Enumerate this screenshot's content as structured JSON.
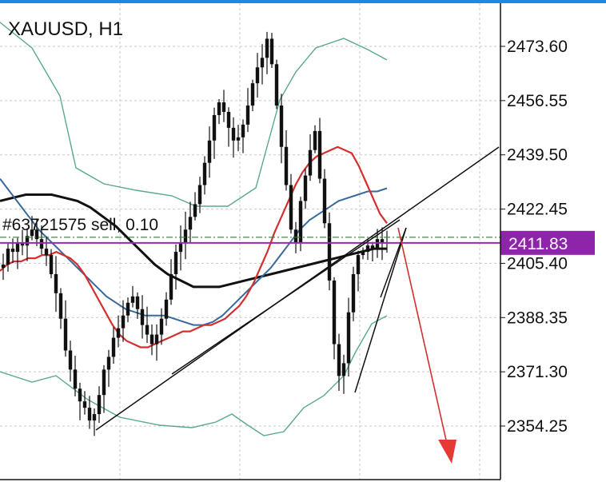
{
  "chart_data": {
    "type": "candlestick",
    "title": "XAUUSD, H1",
    "symbol": "XAUUSD",
    "timeframe": "H1",
    "y_axis": {
      "ticks": [
        "2473.60",
        "2456.55",
        "2439.50",
        "2422.45",
        "2405.40",
        "2388.35",
        "2371.30",
        "2354.25"
      ],
      "range": [
        2344.0,
        2481.0
      ]
    },
    "grid": true,
    "current_price": "2411.83",
    "order_line": {
      "label": "#63721575 sell, 0.10",
      "price": 2413.6
    },
    "ohlc_note": "candles approximate the shown price path",
    "close_path": [
      2405,
      2410,
      2409,
      2412,
      2411,
      2414,
      2416,
      2413,
      2410,
      2408,
      2402,
      2396,
      2388,
      2378,
      2372,
      2366,
      2362,
      2360,
      2356,
      2358,
      2364,
      2372,
      2376,
      2382,
      2385,
      2389,
      2393,
      2395,
      2391,
      2386,
      2383,
      2380,
      2383,
      2388,
      2394,
      2402,
      2409,
      2412,
      2416,
      2420,
      2424,
      2430,
      2437,
      2444,
      2452,
      2456,
      2453,
      2448,
      2444,
      2445,
      2449,
      2455,
      2462,
      2467,
      2470,
      2476,
      2468,
      2455,
      2442,
      2430,
      2416,
      2412,
      2425,
      2433,
      2441,
      2447,
      2432,
      2418,
      2400,
      2380,
      2370,
      2374,
      2390,
      2402,
      2408,
      2409,
      2411,
      2410,
      2413,
      2412,
      2411.83
    ],
    "indicators": [
      {
        "kind": "moving-average",
        "color": "#d32f2f",
        "values": [
          2403,
          2405,
          2406,
          2406,
          2407,
          2407,
          2408,
          2408,
          2409,
          2408,
          2407,
          2405,
          2402,
          2398,
          2394,
          2390,
          2386,
          2383,
          2381,
          2380,
          2379,
          2379,
          2380,
          2381,
          2382,
          2383,
          2384,
          2384,
          2385,
          2386,
          2386,
          2387,
          2388,
          2390,
          2392,
          2395,
          2399,
          2404,
          2409,
          2415,
          2420,
          2425,
          2430,
          2434,
          2437,
          2439,
          2440,
          2441,
          2442,
          2441,
          2440,
          2436,
          2431,
          2426,
          2421,
          2418
        ]
      },
      {
        "kind": "moving-average",
        "color": "#37699b",
        "values": [
          2432,
          2428,
          2424,
          2420,
          2416,
          2413,
          2410,
          2407,
          2404,
          2401,
          2398,
          2395,
          2393,
          2391,
          2390,
          2389,
          2389,
          2389,
          2388,
          2387,
          2386,
          2386,
          2387,
          2389,
          2392,
          2395,
          2398,
          2401,
          2404,
          2408,
          2412,
          2416,
          2419,
          2421,
          2423,
          2425,
          2426,
          2427,
          2428,
          2428,
          2429
        ]
      },
      {
        "kind": "moving-average",
        "color": "#111111",
        "values": [
          2425,
          2426,
          2427,
          2427,
          2427,
          2426,
          2425,
          2423,
          2420,
          2417,
          2413,
          2409,
          2405,
          2402,
          2400,
          2398,
          2398,
          2398,
          2399,
          2400,
          2401,
          2402,
          2403,
          2404,
          2405,
          2406,
          2407,
          2408,
          2409,
          2410,
          2410
        ]
      },
      {
        "kind": "band-upper",
        "color": "#5aa88c"
      },
      {
        "kind": "band-lower",
        "color": "#5aa88c"
      }
    ],
    "annotations": [
      {
        "kind": "trendline",
        "description": "ascending support line"
      },
      {
        "kind": "trendline",
        "description": "wedge lines"
      },
      {
        "kind": "arrow",
        "color": "#d32f2f",
        "direction": "down"
      }
    ]
  }
}
